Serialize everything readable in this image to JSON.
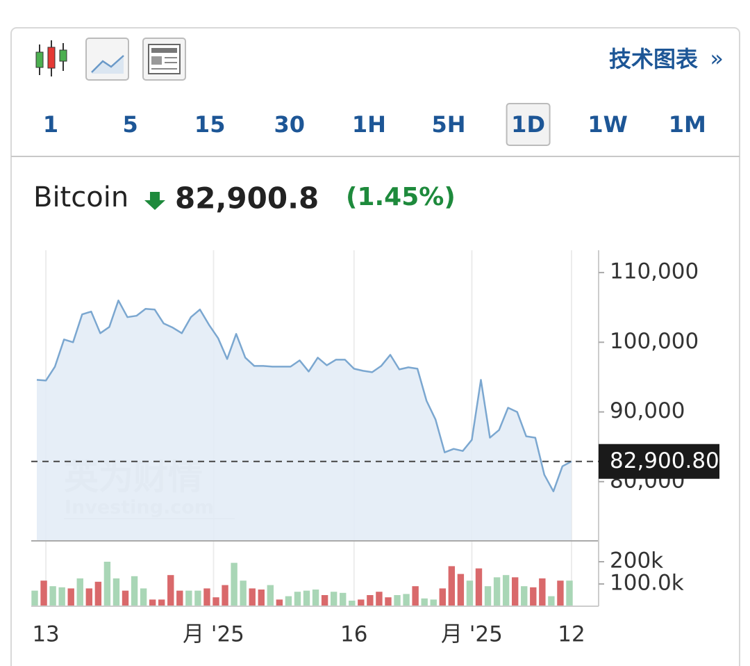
{
  "toolbar": {
    "link": "技术图表",
    "link_arrow": "»",
    "timeframes": [
      "1",
      "5",
      "15",
      "30",
      "1H",
      "5H",
      "1D",
      "1W",
      "1M"
    ],
    "selected": "1D"
  },
  "header": {
    "name": "Bitcoin",
    "price": "82,900.8",
    "change": "(1.45%)"
  },
  "chart_data": {
    "type": "line",
    "watermark": [
      "英为财情",
      "Investing.com"
    ],
    "line_color": "#7ba7d0",
    "area_color": "#e3ecf6",
    "values": [
      94600,
      94500,
      96500,
      100400,
      100000,
      104000,
      104400,
      101300,
      102200,
      106000,
      103600,
      103800,
      104800,
      104700,
      102700,
      102100,
      101300,
      103600,
      104700,
      102500,
      100600,
      97600,
      101200,
      97800,
      96600,
      96600,
      96500,
      96500,
      96500,
      97400,
      95800,
      97800,
      96700,
      97500,
      97500,
      96200,
      95900,
      95700,
      96600,
      98200,
      96100,
      96400,
      96200,
      91600,
      88900,
      84200,
      84700,
      84400,
      86000,
      94600,
      86300,
      87400,
      90600,
      90000,
      86500,
      86300,
      81000,
      78600,
      82200,
      82900.8
    ],
    "last_price": {
      "value": 82900.8,
      "label": "82,900.80"
    },
    "ylim": [
      71500,
      113200
    ],
    "yticks": [
      {
        "value": 110000,
        "label": "110,000"
      },
      {
        "value": 100000,
        "label": "100,000"
      },
      {
        "value": 90000,
        "label": "90,000"
      },
      {
        "value": 80000,
        "label": "80,000"
      }
    ],
    "xlim": [
      0,
      59
    ],
    "xticks": [
      {
        "value": 1,
        "label": "13"
      },
      {
        "value": 19.5,
        "label": "月 '25"
      },
      {
        "value": 35,
        "label": "16"
      },
      {
        "value": 48,
        "label": "月 '25"
      },
      {
        "value": 59,
        "label": "12"
      }
    ],
    "volume": {
      "values": [
        70000,
        115000,
        90000,
        85000,
        80000,
        125000,
        80000,
        110000,
        200000,
        125000,
        70000,
        135000,
        80000,
        30000,
        30000,
        140000,
        70000,
        70000,
        70000,
        80000,
        40000,
        95000,
        195000,
        115000,
        80000,
        75000,
        95000,
        30000,
        45000,
        65000,
        70000,
        75000,
        50000,
        65000,
        60000,
        25000,
        30000,
        50000,
        65000,
        40000,
        50000,
        55000,
        90000,
        35000,
        30000,
        80000,
        180000,
        145000,
        115000,
        170000,
        90000,
        130000,
        140000,
        130000,
        90000,
        85000,
        125000,
        45000,
        115000,
        115000
      ],
      "colors": [
        "#a9d6b6",
        "#d9696b",
        "#a9d6b6",
        "#a9d6b6",
        "#d9696b",
        "#a9d6b6",
        "#d9696b",
        "#d9696b",
        "#a9d6b6",
        "#a9d6b6",
        "#d9696b",
        "#a9d6b6",
        "#a9d6b6",
        "#d9696b",
        "#d9696b",
        "#d9696b",
        "#d9696b",
        "#a9d6b6",
        "#a9d6b6",
        "#d9696b",
        "#d9696b",
        "#d9696b",
        "#a9d6b6",
        "#a9d6b6",
        "#d9696b",
        "#d9696b",
        "#a9d6b6",
        "#d9696b",
        "#a9d6b6",
        "#a9d6b6",
        "#a9d6b6",
        "#a9d6b6",
        "#d9696b",
        "#a9d6b6",
        "#a9d6b6",
        "#a9d6b6",
        "#d9696b",
        "#d9696b",
        "#d9696b",
        "#d9696b",
        "#a9d6b6",
        "#a9d6b6",
        "#d9696b",
        "#a9d6b6",
        "#a9d6b6",
        "#d9696b",
        "#d9696b",
        "#d9696b",
        "#a9d6b6",
        "#d9696b",
        "#a9d6b6",
        "#a9d6b6",
        "#a9d6b6",
        "#d9696b",
        "#a9d6b6",
        "#d9696b",
        "#d9696b",
        "#a9d6b6",
        "#d9696b",
        "#a9d6b6"
      ],
      "ylim": [
        0,
        287500
      ],
      "yticks": [
        {
          "value": 200000,
          "label": "200k"
        },
        {
          "value": 100000,
          "label": "100.0k"
        }
      ]
    }
  }
}
